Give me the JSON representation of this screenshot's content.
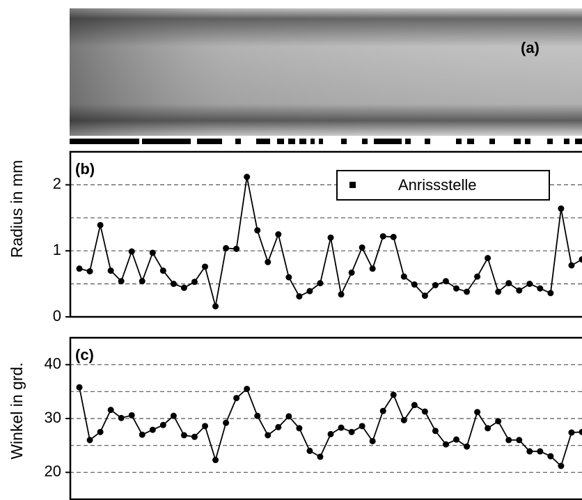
{
  "figure": {
    "panel_a": {
      "label": "(a)"
    }
  },
  "chart_data": [
    {
      "type": "line",
      "panel_label": "(b)",
      "y_label": "Radius in mm",
      "color": "#000000",
      "ylim": [
        0,
        2.5
      ],
      "yticks": [
        0,
        1,
        2
      ],
      "grid_lines": [
        0.5,
        1,
        1.5,
        2
      ],
      "legend": {
        "label": "Anrissstelle",
        "corner": "top-right"
      },
      "values": [
        0.73,
        0.69,
        1.39,
        0.7,
        0.54,
        0.99,
        0.54,
        0.97,
        0.7,
        0.5,
        0.44,
        0.53,
        0.76,
        0.16,
        1.04,
        1.03,
        2.12,
        1.31,
        0.83,
        1.25,
        0.6,
        0.31,
        0.39,
        0.51,
        1.2,
        0.34,
        0.67,
        1.05,
        0.73,
        1.22,
        1.21,
        0.61,
        0.49,
        0.32,
        0.48,
        0.54,
        0.43,
        0.38,
        0.61,
        0.89,
        0.38,
        0.51,
        0.4,
        0.5,
        0.43,
        0.36,
        1.64,
        0.78,
        0.87
      ]
    },
    {
      "type": "line",
      "panel_label": "(c)",
      "y_label": "Winkel in grd.",
      "color": "#000000",
      "ylim": [
        15,
        45
      ],
      "yticks": [
        20,
        30,
        40
      ],
      "grid_lines": [
        20,
        25,
        30,
        35,
        40
      ],
      "values": [
        35.8,
        26.0,
        27.5,
        31.6,
        30.1,
        30.6,
        27.0,
        27.9,
        28.8,
        30.5,
        26.9,
        26.6,
        28.6,
        22.3,
        29.2,
        33.8,
        35.5,
        30.5,
        26.9,
        28.4,
        30.4,
        28.2,
        24.0,
        22.9,
        27.1,
        28.3,
        27.5,
        28.6,
        25.8,
        31.4,
        34.4,
        29.7,
        32.5,
        31.3,
        27.7,
        25.2,
        26.1,
        24.8,
        31.2,
        28.2,
        29.5,
        26.0,
        26.0,
        23.9,
        23.9,
        23.0,
        21.2,
        27.4,
        27.5
      ]
    }
  ]
}
